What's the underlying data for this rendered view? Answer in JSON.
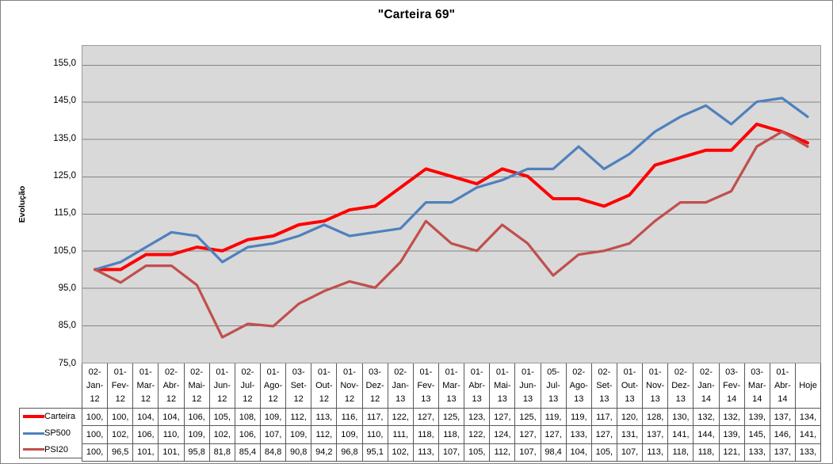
{
  "chart": {
    "plot_bg": "#d9d9d9",
    "grid_color": "#848484",
    "border_color": "#595959"
  },
  "chart_data": {
    "type": "line",
    "title": "\"Carteira 69\"",
    "xlabel": "",
    "ylabel": "Evolução",
    "ylim": [
      75,
      160
    ],
    "y_major_unit": 10,
    "grid": true,
    "legend_position": "bottom-left of data table",
    "y_tick_labels": [
      "155,0",
      "145,0",
      "135,0",
      "125,0",
      "115,0",
      "105,0",
      "95,0",
      "85,0",
      "75,0"
    ],
    "y_tick_values": [
      155,
      145,
      135,
      125,
      115,
      105,
      95,
      85,
      75
    ],
    "categories": [
      "02-Jan-12",
      "01-Fev-12",
      "01-Mar-12",
      "02-Abr-12",
      "02-Mai-12",
      "01-Jun-12",
      "02-Jul-12",
      "01-Ago-12",
      "03-Set-12",
      "01-Out-12",
      "01-Nov-12",
      "03-Dez-12",
      "02-Jan-13",
      "01-Fev-13",
      "01-Mar-13",
      "01-Abr-13",
      "01-Mai-13",
      "01-Jun-13",
      "05-Jul-13",
      "02-Ago-13",
      "02-Set-13",
      "01-Out-13",
      "01-Nov-13",
      "02-Dez-13",
      "02-Jan-14",
      "03-Fev-14",
      "03-Mar-14",
      "01-Abr-14",
      "Hoje"
    ],
    "series": [
      {
        "name": "Carteira",
        "color": "#ff0000",
        "stroke_width": 4,
        "values": [
          100,
          100,
          104,
          104,
          106,
          105,
          108,
          109,
          112,
          113,
          116,
          117,
          122,
          127,
          125,
          123,
          127,
          125,
          119,
          119,
          117,
          120,
          128,
          130,
          132,
          132,
          139,
          137,
          134
        ],
        "display": [
          "100,",
          "100,",
          "104,",
          "104,",
          "106,",
          "105,",
          "108,",
          "109,",
          "112,",
          "113,",
          "116,",
          "117,",
          "122,",
          "127,",
          "125,",
          "123,",
          "127,",
          "125,",
          "119,",
          "119,",
          "117,",
          "120,",
          "128,",
          "130,",
          "132,",
          "132,",
          "139,",
          "137,",
          "134,"
        ]
      },
      {
        "name": "SP500",
        "color": "#4f81bd",
        "stroke_width": 3.25,
        "values": [
          100,
          102,
          106,
          110,
          109,
          102,
          106,
          107,
          109,
          112,
          109,
          110,
          111,
          118,
          118,
          122,
          124,
          127,
          127,
          133,
          127,
          131,
          137,
          141,
          144,
          139,
          145,
          146,
          141
        ],
        "display": [
          "100,",
          "102,",
          "106,",
          "110,",
          "109,",
          "102,",
          "106,",
          "107,",
          "109,",
          "112,",
          "109,",
          "110,",
          "111,",
          "118,",
          "118,",
          "122,",
          "124,",
          "127,",
          "127,",
          "133,",
          "127,",
          "131,",
          "137,",
          "141,",
          "144,",
          "139,",
          "145,",
          "146,",
          "141,"
        ]
      },
      {
        "name": "PSI20",
        "color": "#c0504d",
        "stroke_width": 3.25,
        "values": [
          100,
          96.5,
          101,
          101,
          95.8,
          81.8,
          85.4,
          84.8,
          90.8,
          94.2,
          96.8,
          95.1,
          102,
          113,
          107,
          105,
          112,
          107,
          98.4,
          104,
          105,
          107,
          113,
          118,
          118,
          121,
          133,
          137,
          133
        ],
        "display": [
          "100,",
          "96,5",
          "101,",
          "101,",
          "95,8",
          "81,8",
          "85,4",
          "84,8",
          "90,8",
          "94,2",
          "96,8",
          "95,1",
          "102,",
          "113,",
          "107,",
          "105,",
          "112,",
          "107,",
          "98,4",
          "104,",
          "105,",
          "107,",
          "113,",
          "118,",
          "118,",
          "121,",
          "133,",
          "137,",
          "133,"
        ]
      }
    ]
  }
}
